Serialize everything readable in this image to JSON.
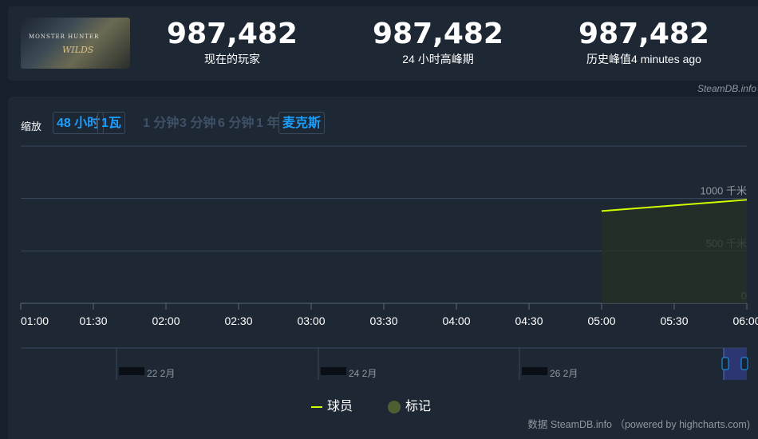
{
  "header": {
    "game_logo_line1": "MONSTER HUNTER",
    "game_logo_line2": "WILDS",
    "stats": [
      {
        "value": "987,482",
        "label": "现在的玩家"
      },
      {
        "value": "987,482",
        "label": "24 小时高峰期"
      },
      {
        "value": "987,482",
        "label": "历史峰值4 minutes ago"
      }
    ],
    "credit": "SteamDB.info"
  },
  "zoom": {
    "label": "缩放",
    "buttons": [
      "48 小时",
      "1瓦",
      "1 分钟",
      "3 分钟",
      "6 分钟",
      "1 年",
      "麦克斯"
    ],
    "active": [
      "48 小时",
      "1瓦",
      "麦克斯"
    ]
  },
  "colors": {
    "line": "#d2ff00",
    "marker": "#4e5f33",
    "accent": "#1a9fff"
  },
  "chart_data": {
    "type": "line",
    "series": [
      {
        "name": "球员",
        "x": [
          "05:00",
          "06:00"
        ],
        "values": [
          880000,
          987482
        ]
      }
    ],
    "xticks": [
      "01:00",
      "01:30",
      "02:00",
      "02:30",
      "03:00",
      "03:30",
      "04:00",
      "04:30",
      "05:00",
      "05:30",
      "06:00"
    ],
    "yticks": [
      {
        "value": 0,
        "label": "0"
      },
      {
        "value": 500000,
        "label": "500 千米"
      },
      {
        "value": 1000000,
        "label": "1000 千米"
      }
    ],
    "ylim": [
      0,
      1500000
    ],
    "grid": true,
    "navigator_labels": [
      "22 2月",
      "24 2月",
      "26 2月"
    ],
    "legend": [
      {
        "name": "球员",
        "type": "line"
      },
      {
        "name": "标记",
        "type": "dot"
      }
    ]
  },
  "footer": {
    "credit": "数据 SteamDB.info （powered by highcharts.com)"
  }
}
